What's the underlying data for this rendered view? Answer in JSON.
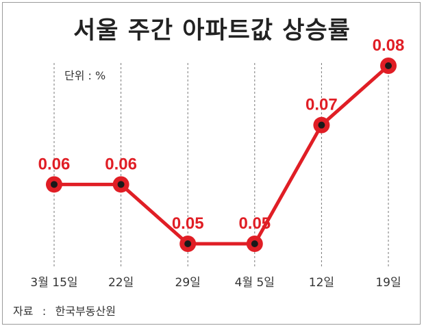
{
  "title": "서울 주간 아파트값 상승률",
  "unit_label": "단위 : %",
  "source": {
    "label": "자료",
    "separator": ":",
    "name": "한국부동산원"
  },
  "colors": {
    "line": "#e01e25",
    "marker_fill": "#e01e25",
    "marker_center": "#1a1a1a",
    "value_label": "#e01e25",
    "gridline": "#777777"
  },
  "chart_data": {
    "type": "line",
    "categories": [
      "3월 15일",
      "22일",
      "29일",
      "4월 5일",
      "12일",
      "19일"
    ],
    "series": [
      {
        "values": [
          0.06,
          0.06,
          0.05,
          0.05,
          0.07,
          0.08
        ]
      }
    ],
    "data_labels": [
      "0.06",
      "0.06",
      "0.05",
      "0.05",
      "0.07",
      "0.08"
    ],
    "xlabel": "",
    "ylabel": "",
    "grid": "vertical-dashed",
    "legend": "none"
  }
}
